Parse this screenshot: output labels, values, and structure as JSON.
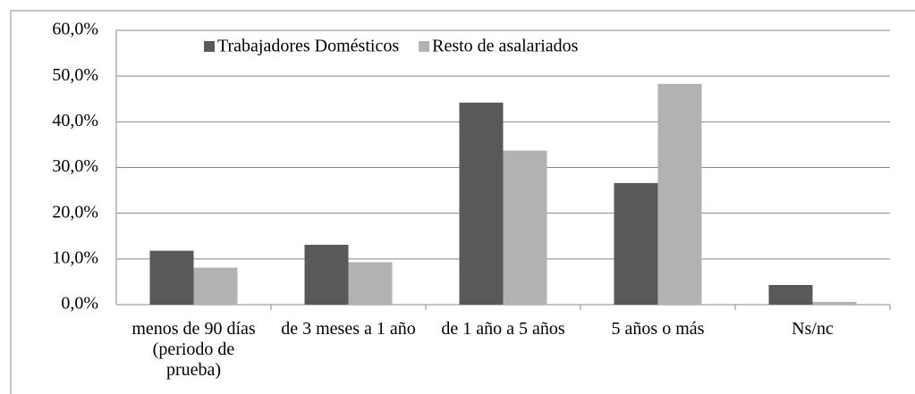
{
  "chart_data": {
    "type": "bar",
    "categories": [
      "menos de 90 días (periodo de prueba)",
      "de 3 meses a 1 año",
      "de 1 año a 5 años",
      "5 años o más",
      "Ns/nc"
    ],
    "series": [
      {
        "name": "Trabajadores Domésticos",
        "color": "#595959",
        "values": [
          11.8,
          13.1,
          44.2,
          26.6,
          4.3
        ]
      },
      {
        "name": "Resto de asalariados",
        "color": "#b2b2b2",
        "values": [
          8.1,
          9.3,
          33.7,
          48.3,
          0.6
        ]
      }
    ],
    "ylim": [
      0,
      60
    ],
    "yticks": [
      {
        "value": 0,
        "label": "0,0%"
      },
      {
        "value": 10,
        "label": "10,0%"
      },
      {
        "value": 20,
        "label": "20,0%"
      },
      {
        "value": 30,
        "label": "30,0%"
      },
      {
        "value": 40,
        "label": "40,0%"
      },
      {
        "value": 50,
        "label": "50,0%"
      },
      {
        "value": 60,
        "label": "60,0%"
      }
    ],
    "grid": true
  }
}
